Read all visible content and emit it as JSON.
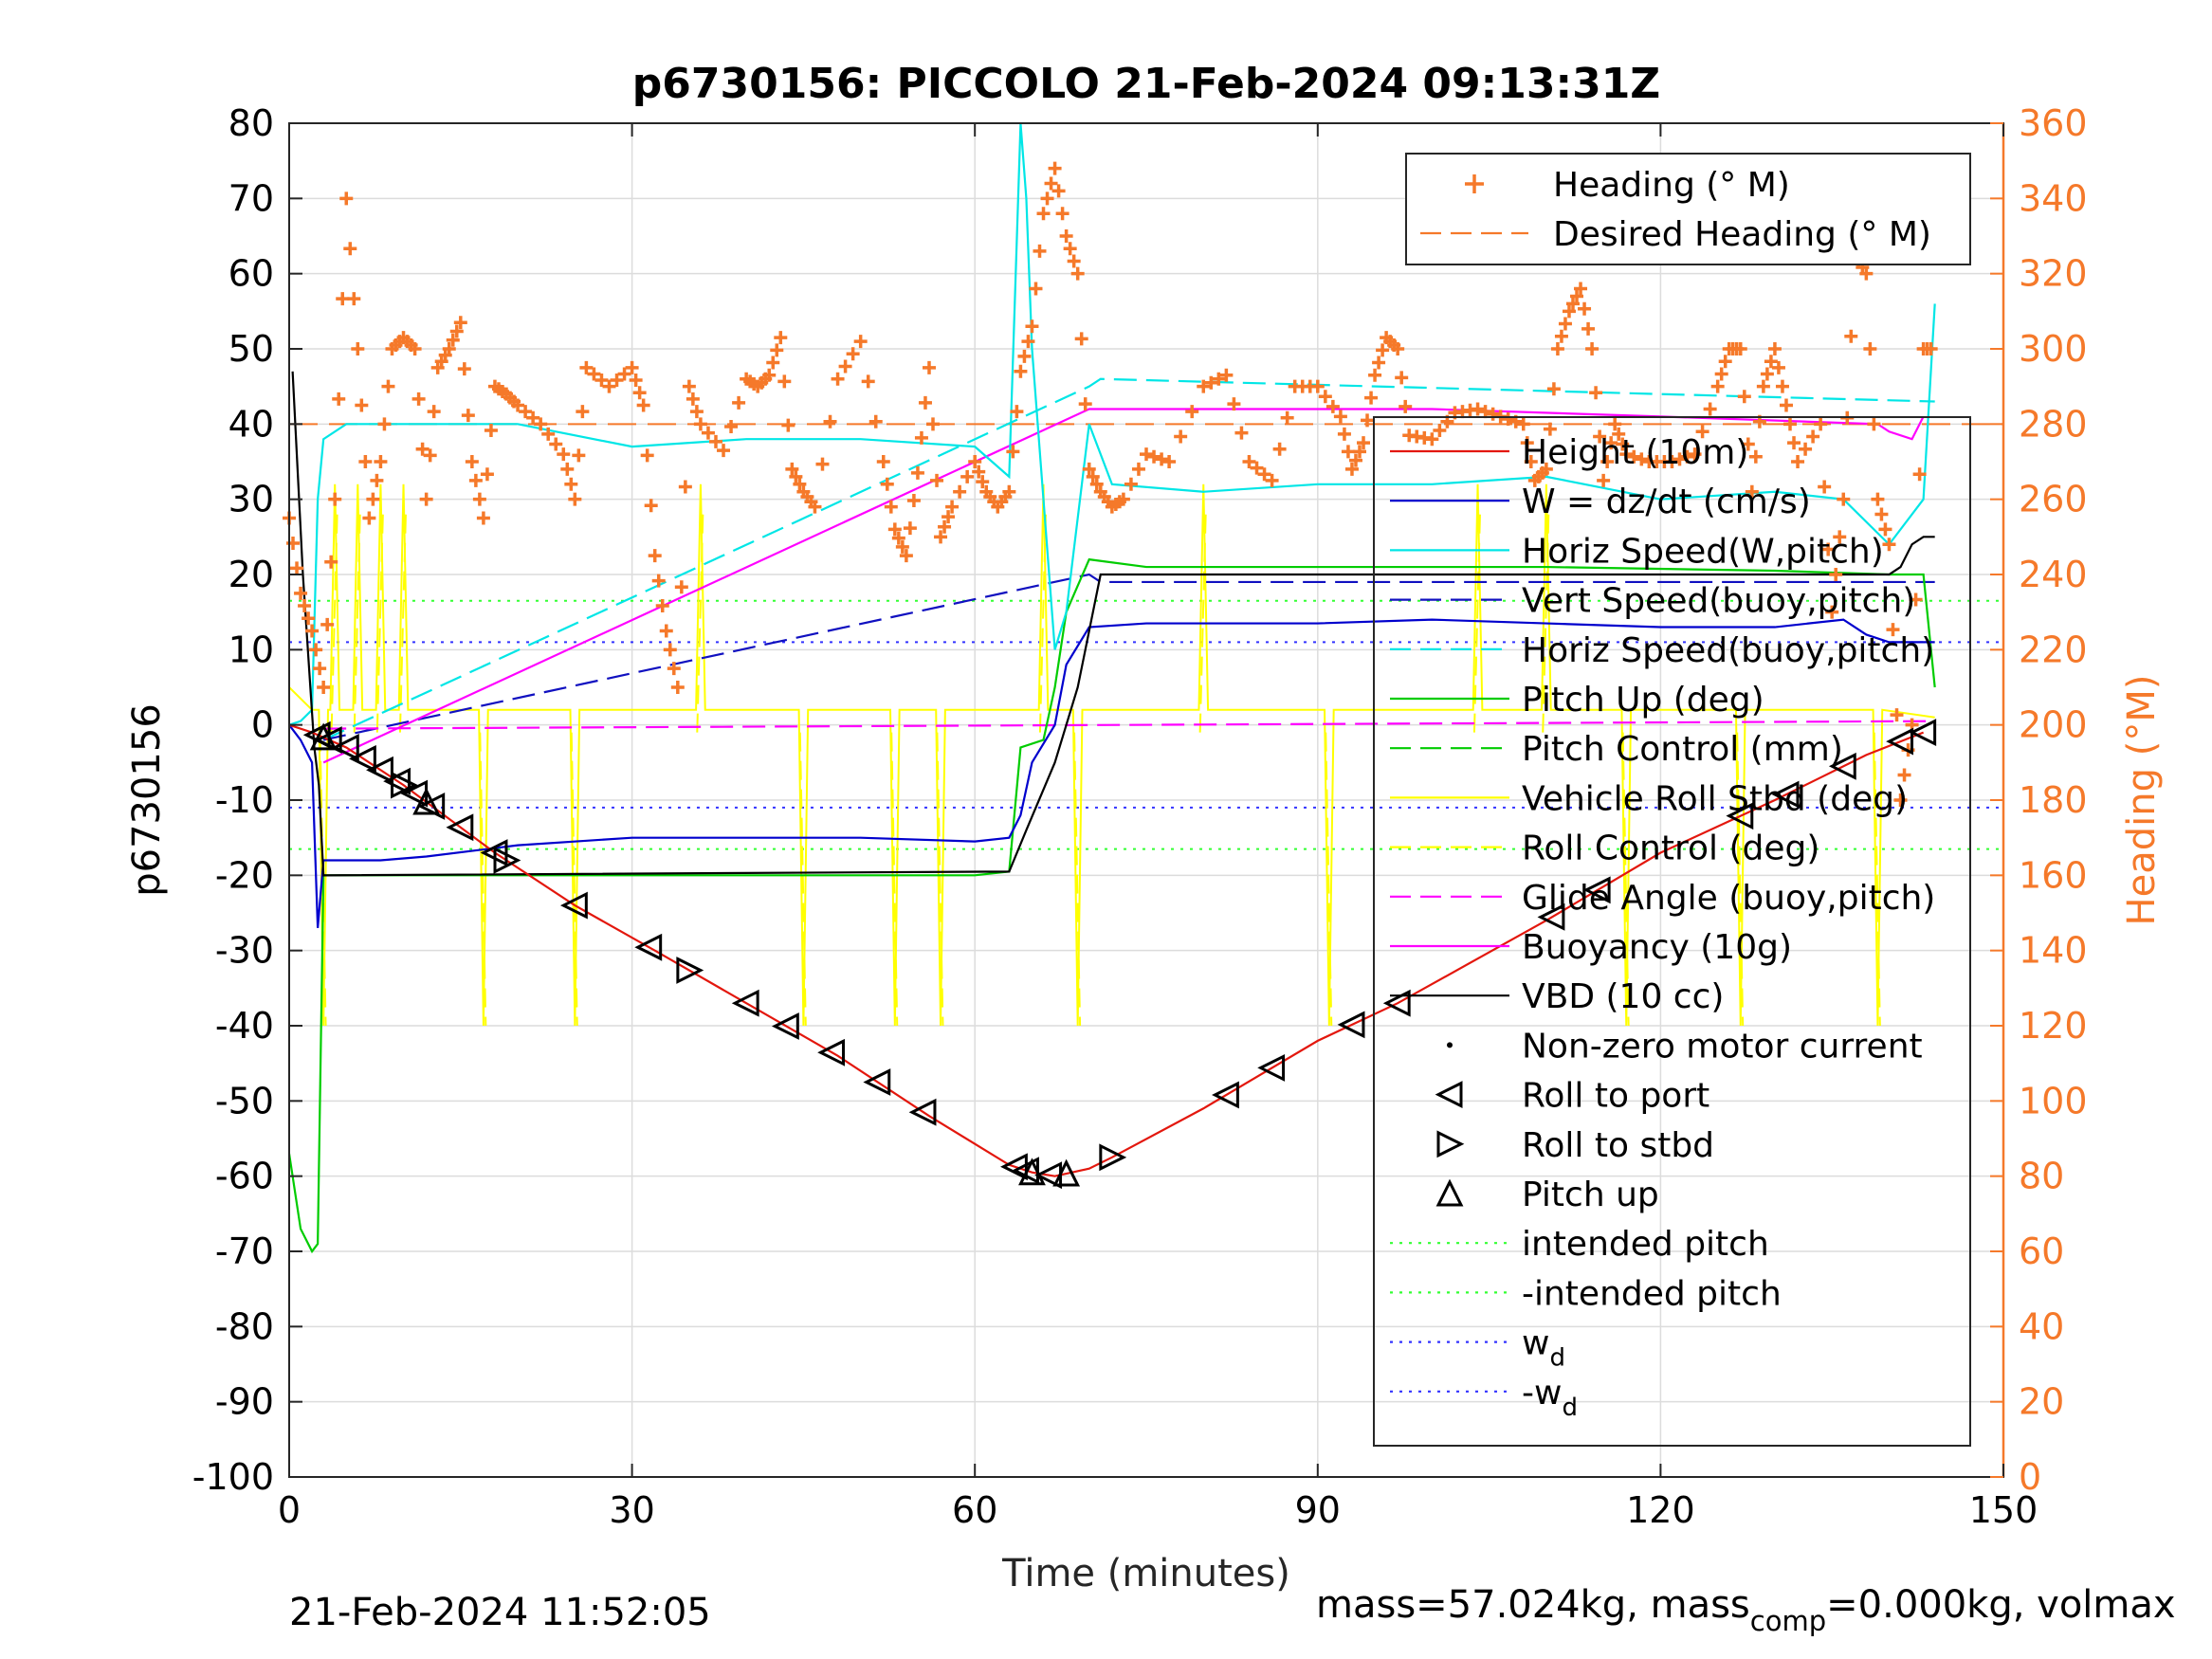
{
  "chart_data": {
    "type": "line",
    "title": "p6730156: PICCOLO 21-Feb-2024 09:13:31Z",
    "xlabel": "Time (minutes)",
    "ylabel": "p6730156",
    "y2label": "Heading (°M)",
    "xlim": [
      0,
      150
    ],
    "ylim": [
      -100,
      80
    ],
    "y2lim": [
      0,
      360
    ],
    "xticks": [
      "0",
      "30",
      "60",
      "90",
      "120",
      "150"
    ],
    "yticks": [
      "80",
      "70",
      "60",
      "50",
      "40",
      "30",
      "20",
      "10",
      "0",
      "-10",
      "-20",
      "-30",
      "-40",
      "-50",
      "-60",
      "-70",
      "-80",
      "-90",
      "-100"
    ],
    "y2ticks": [
      "360",
      "340",
      "320",
      "300",
      "280",
      "260",
      "240",
      "220",
      "200",
      "180",
      "160",
      "140",
      "120",
      "100",
      "80",
      "60",
      "40",
      "20",
      "0"
    ],
    "grid": true,
    "colors": {
      "heading": "#f5792a",
      "height": "#e3170d",
      "w": "#0000cd",
      "horiz": "#00e6e6",
      "vert_buoy": "#1010c0",
      "pitch": "#00cc00",
      "roll": "#ffff00",
      "glide": "#ff00ff",
      "buoyancy": "#ff00ff",
      "vbd": "#000000",
      "intended": "#33ff33",
      "wd": "#3333ff"
    },
    "legend_top": [
      {
        "name": "Heading (° M)",
        "style": "plus",
        "color": "#f5792a"
      },
      {
        "name": "Desired Heading (° M)",
        "style": "dashed",
        "color": "#f5792a"
      }
    ],
    "legend_main": [
      {
        "name": "Height (10m)",
        "style": "solid",
        "color": "#e3170d"
      },
      {
        "name": "W = dz/dt (cm/s)",
        "style": "solid",
        "color": "#0000cd"
      },
      {
        "name": "Horiz Speed(W,pitch)",
        "style": "solid",
        "color": "#00e6e6"
      },
      {
        "name": "Vert Speed(buoy,pitch)",
        "style": "dashed",
        "color": "#1010c0"
      },
      {
        "name": "Horiz Speed(buoy,pitch)",
        "style": "dashed",
        "color": "#00e6e6"
      },
      {
        "name": "Pitch Up (deg)",
        "style": "solid",
        "color": "#00cc00"
      },
      {
        "name": "Pitch Control (mm)",
        "style": "dashed",
        "color": "#00cc00"
      },
      {
        "name": "Vehicle Roll Stbd (deg)",
        "style": "solid",
        "color": "#ffff00"
      },
      {
        "name": "Roll Control (deg)",
        "style": "dashed",
        "color": "#ffff00"
      },
      {
        "name": "Glide Angle (buoy,pitch)",
        "style": "dashed",
        "color": "#ff00ff"
      },
      {
        "name": "Buoyancy (10g)",
        "style": "solid",
        "color": "#ff00ff"
      },
      {
        "name": "VBD (10 cc)",
        "style": "solid",
        "color": "#000000"
      },
      {
        "name": "Non-zero motor current",
        "style": "dot",
        "color": "#000000"
      },
      {
        "name": "Roll to port",
        "style": "tri-left",
        "color": "#000000"
      },
      {
        "name": "Roll to stbd",
        "style": "tri-right",
        "color": "#000000"
      },
      {
        "name": "Pitch up",
        "style": "tri-up",
        "color": "#000000"
      },
      {
        "name": "intended pitch",
        "style": "dotted",
        "color": "#33ff33"
      },
      {
        "name": "-intended pitch",
        "style": "dotted",
        "color": "#33ff33"
      },
      {
        "name": "w",
        "sub": "d",
        "style": "dotted",
        "color": "#3333ff"
      },
      {
        "name": "-w",
        "sub": "d",
        "style": "dotted",
        "color": "#3333ff"
      }
    ],
    "series": [
      {
        "key": "height",
        "x": [
          0,
          2,
          5,
          10,
          18,
          25,
          32,
          40,
          48,
          56,
          63,
          65,
          67,
          70,
          72,
          80,
          90,
          97,
          110,
          120,
          130,
          138,
          143
        ],
        "y": [
          0,
          -1,
          -3,
          -8,
          -17,
          -24,
          -30,
          -37,
          -44,
          -52,
          -58.5,
          -59.5,
          -60,
          -59,
          -57.5,
          -51,
          -42,
          -37,
          -26,
          -17,
          -10,
          -4,
          -1
        ]
      },
      {
        "key": "w",
        "x": [
          0,
          1,
          2,
          2.5,
          3,
          5,
          8,
          12,
          20,
          30,
          40,
          50,
          60,
          63,
          64,
          65,
          67,
          68,
          70,
          75,
          90,
          100,
          110,
          120,
          130,
          136,
          138,
          140,
          143,
          144
        ],
        "y": [
          0,
          -2,
          -5,
          -27,
          -18,
          -18,
          -18,
          -17.5,
          -16,
          -15,
          -15,
          -15,
          -15.5,
          -15,
          -12,
          -5,
          0,
          8,
          13,
          13.5,
          13.5,
          14,
          13.5,
          13,
          13,
          14,
          12,
          11,
          11,
          11
        ]
      },
      {
        "key": "horiz",
        "x": [
          0,
          1,
          2,
          2.5,
          3,
          5,
          8,
          12,
          20,
          30,
          40,
          50,
          60,
          63,
          64,
          64.5,
          65,
          66,
          67,
          68,
          70,
          72,
          80,
          90,
          100,
          110,
          120,
          130,
          136,
          140,
          143,
          144
        ],
        "y": [
          0,
          0.5,
          2,
          30,
          38,
          40,
          40,
          40,
          40,
          37,
          38,
          38,
          37,
          33,
          80,
          70,
          50,
          30,
          10,
          15,
          40,
          32,
          31,
          32,
          32,
          33,
          30,
          31,
          30,
          24,
          30,
          56
        ]
      },
      {
        "key": "vert_buoy",
        "x": [
          3,
          70,
          71,
          144
        ],
        "y": [
          -2,
          20,
          19,
          19
        ],
        "dash": true
      },
      {
        "key": "horiz_buoy",
        "x": [
          3,
          70,
          71,
          144
        ],
        "y": [
          -2,
          45,
          46,
          43
        ],
        "dash": true
      },
      {
        "key": "pitch",
        "x": [
          0,
          1,
          2,
          2.5,
          3,
          10,
          20,
          30,
          40,
          50,
          60,
          63,
          64,
          66,
          67,
          68,
          70,
          75,
          90,
          110,
          130,
          140,
          143,
          144
        ],
        "y": [
          -57,
          -67,
          -70,
          -69,
          -20,
          -20,
          -20,
          -20,
          -20,
          -20,
          -20,
          -19.5,
          -3,
          -2,
          5,
          15,
          22,
          21,
          21,
          21,
          20.5,
          20,
          20,
          5
        ]
      },
      {
        "key": "buoyancy",
        "x": [
          3,
          70,
          71,
          100,
          120,
          139,
          140,
          142,
          143
        ],
        "y": [
          -5,
          42,
          42,
          42,
          41,
          40,
          39,
          38,
          41
        ]
      },
      {
        "key": "glide",
        "x": [
          3,
          144
        ],
        "y": [
          -0.5,
          0.5
        ],
        "dash": true
      },
      {
        "key": "vbd",
        "x": [
          0.3,
          1.2,
          2.2,
          2.6,
          3,
          63,
          64.5,
          67,
          69,
          71,
          100,
          140,
          141,
          142,
          143,
          144
        ],
        "y": [
          47,
          20,
          -3,
          -8,
          -20,
          -19.5,
          -14,
          -5,
          5,
          20,
          20,
          20,
          21,
          24,
          25,
          25
        ]
      }
    ],
    "roll_spikes_min": [
      3,
      4,
      6,
      8,
      10,
      17,
      25,
      36,
      45,
      53,
      57,
      66,
      69,
      80,
      91,
      104,
      110,
      117,
      127,
      139
    ],
    "heading": {
      "x": [
        0,
        1,
        2,
        3,
        4,
        5,
        6,
        7,
        8,
        9,
        10,
        11,
        12,
        13,
        14,
        15,
        16,
        17,
        18,
        19,
        20,
        22,
        24,
        25,
        26,
        28,
        30,
        31,
        32,
        33,
        34,
        35,
        36,
        38,
        40,
        41,
        42,
        43,
        44,
        45,
        46,
        48,
        50,
        52,
        53,
        54,
        55,
        56,
        57,
        58,
        60,
        61,
        62,
        63,
        64,
        65,
        66,
        67,
        68,
        69,
        70,
        71,
        72,
        73,
        75,
        77,
        80,
        82,
        84,
        86,
        88,
        90,
        92,
        93,
        94,
        95,
        96,
        97,
        98,
        100,
        102,
        104,
        106,
        108,
        109,
        110,
        111,
        112,
        113,
        114,
        115,
        116,
        117,
        119,
        121,
        123,
        125,
        126,
        127,
        128,
        129,
        130,
        131,
        132,
        134,
        135,
        136,
        137,
        138,
        139,
        140,
        141,
        142,
        143,
        144
      ],
      "y": [
        255,
        235,
        225,
        210,
        260,
        340,
        300,
        255,
        270,
        300,
        303,
        300,
        260,
        295,
        300,
        307,
        270,
        255,
        290,
        288,
        285,
        280,
        272,
        260,
        295,
        290,
        295,
        285,
        245,
        225,
        210,
        290,
        280,
        273,
        292,
        290,
        293,
        303,
        268,
        262,
        258,
        292,
        302,
        270,
        252,
        245,
        267,
        295,
        250,
        258,
        270,
        262,
        258,
        262,
        294,
        306,
        336,
        348,
        330,
        320,
        268,
        262,
        258,
        260,
        272,
        270,
        290,
        293,
        270,
        265,
        290,
        290,
        282,
        268,
        275,
        293,
        303,
        300,
        277,
        276,
        283,
        284,
        282,
        280,
        265,
        268,
        300,
        310,
        316,
        300,
        265,
        280,
        272,
        270,
        270,
        272,
        290,
        300,
        300,
        262,
        290,
        300,
        285,
        270,
        280,
        230,
        260,
        325,
        320,
        260,
        248,
        180,
        200,
        300,
        300
      ]
    },
    "desired_heading": 280,
    "intended_pitch": 16.5,
    "wd": 11,
    "markers": {
      "port_x": [
        2.5,
        3.5,
        5,
        6.5,
        8,
        9.5,
        11,
        12.5,
        15,
        18,
        25,
        31.5,
        40,
        43.5,
        47.5,
        51.5,
        55.5,
        63.5,
        64.5,
        66.5,
        82,
        86,
        93,
        97,
        110.5,
        114.5,
        127,
        131,
        136,
        141,
        143
      ],
      "stbd_x": [
        10,
        19,
        35,
        72
      ],
      "up_x": [
        3,
        12,
        65,
        68
      ]
    }
  },
  "footer": {
    "left": "21-Feb-2024 11:52:05",
    "right_prefix": "mass=57.024kg, mass",
    "right_sub": "comp",
    "right_suffix": "=0.000kg, volmax"
  }
}
